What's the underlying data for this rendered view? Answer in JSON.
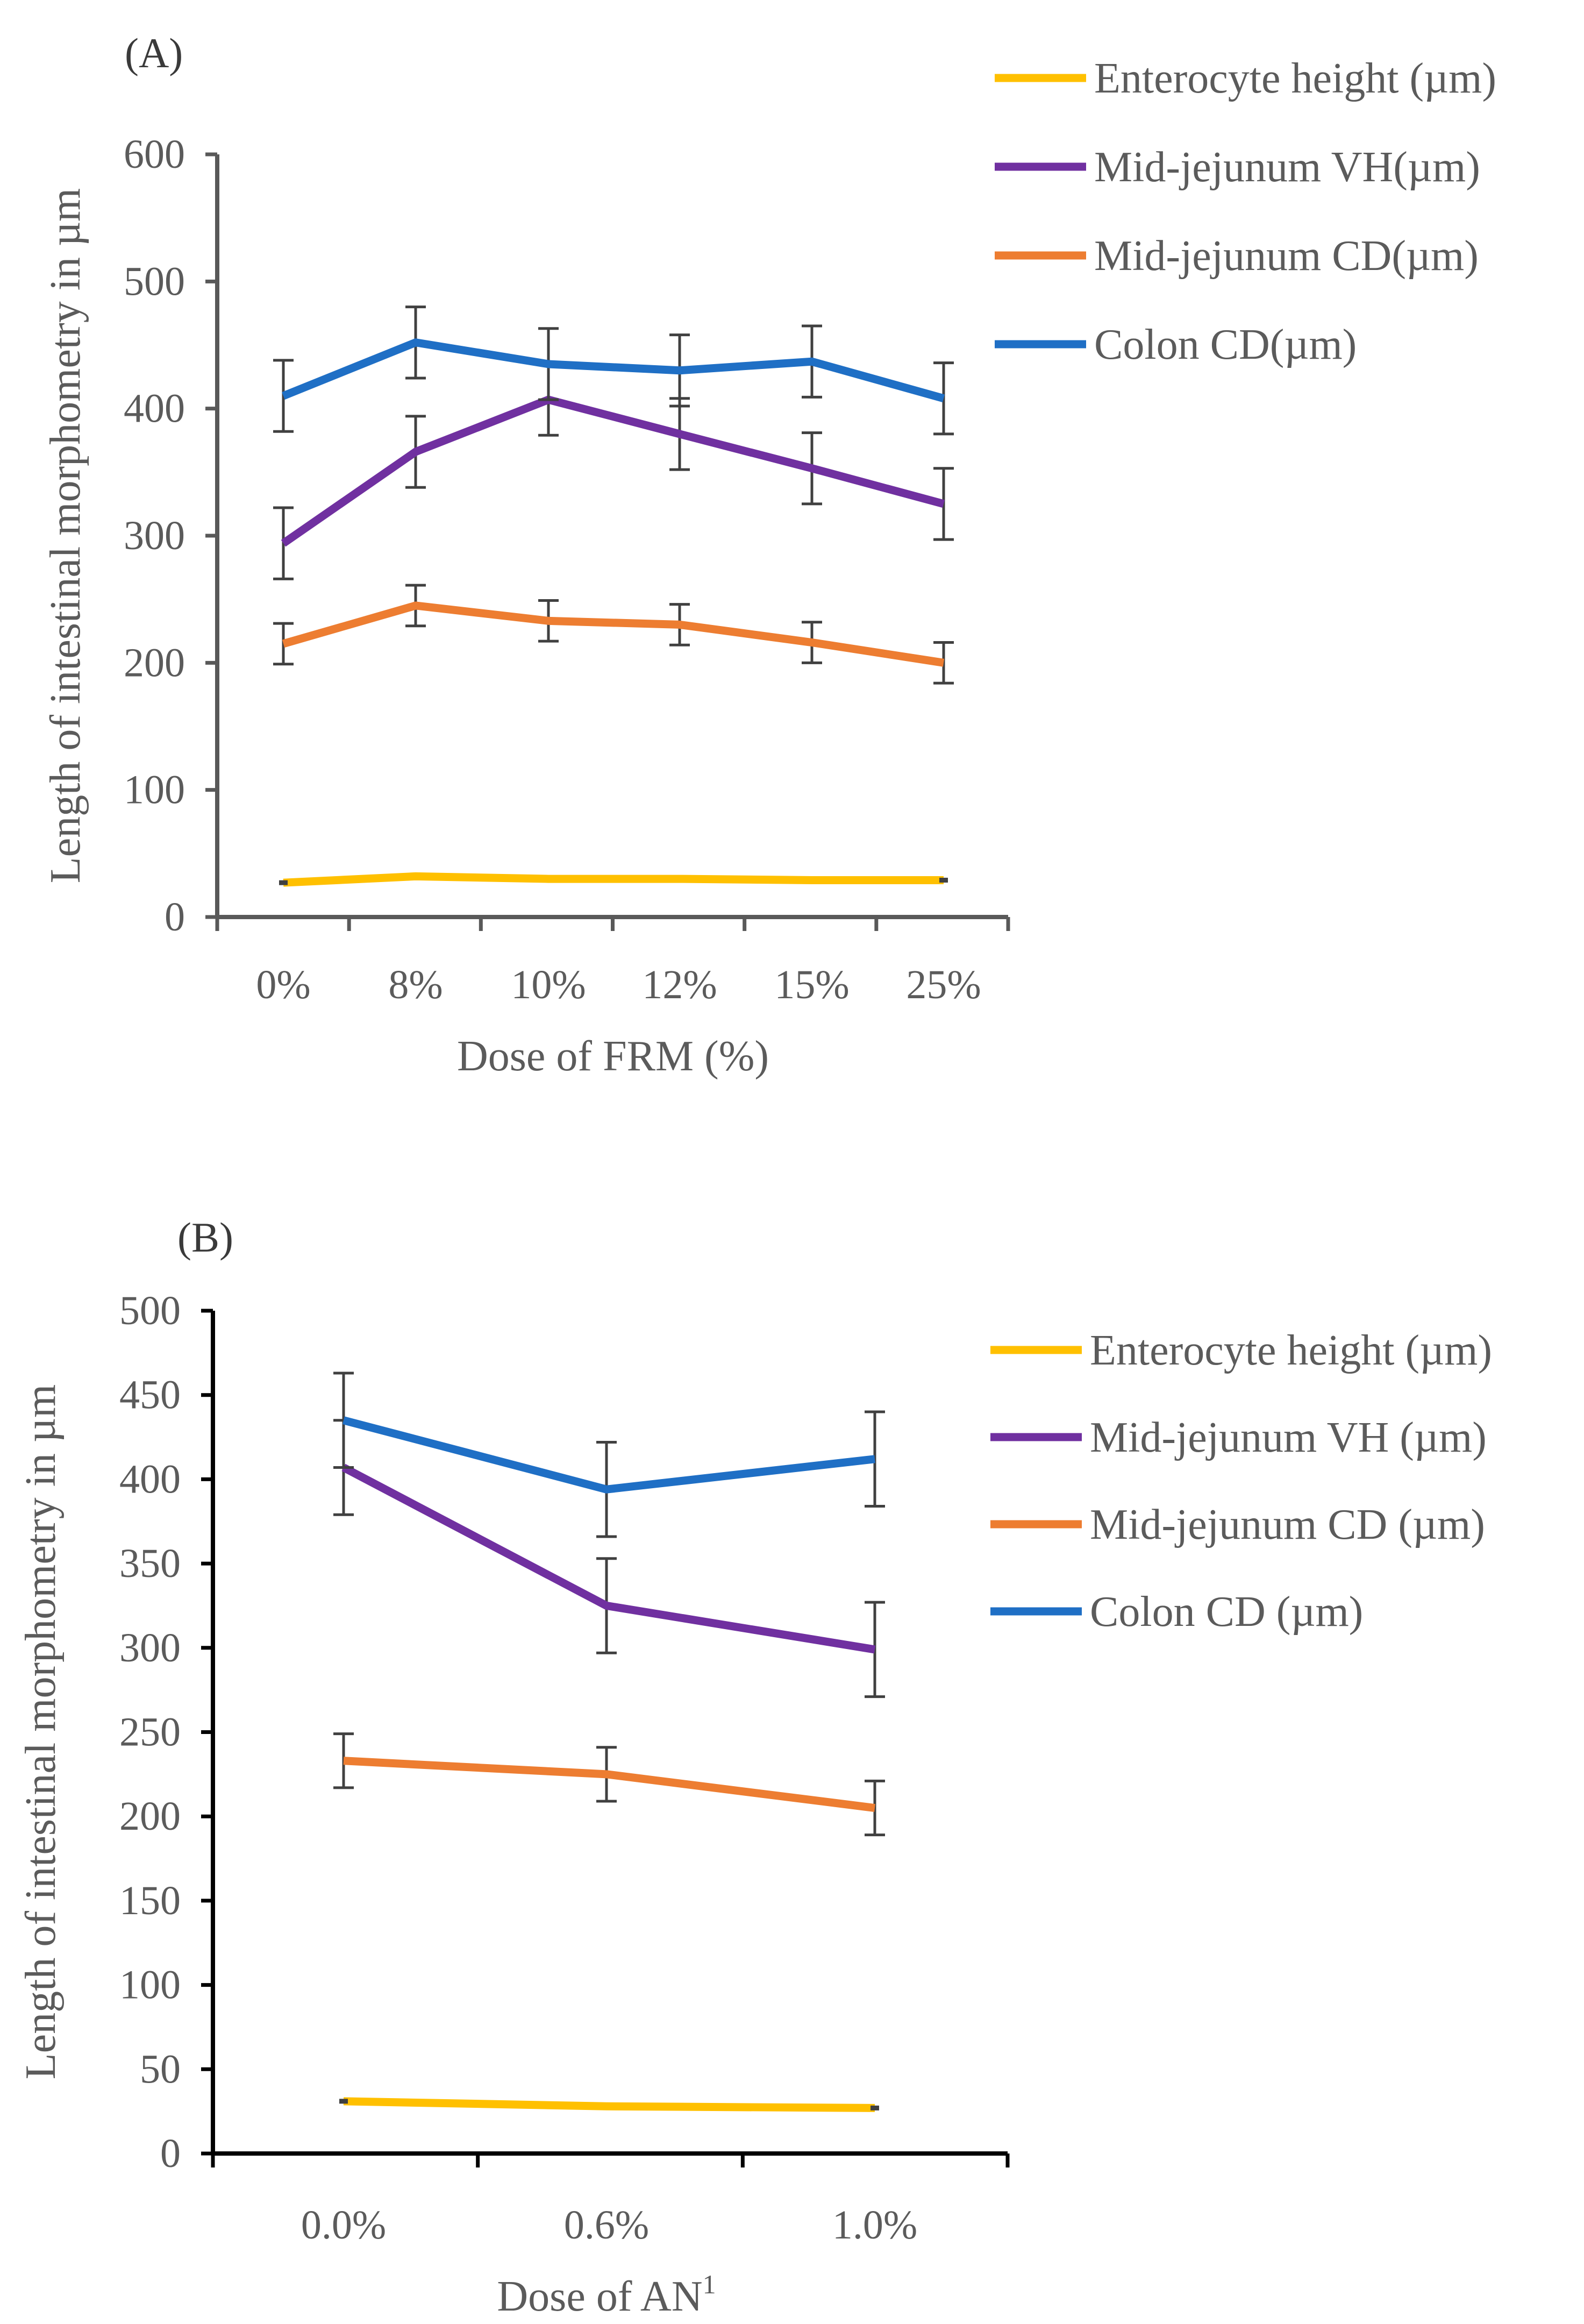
{
  "chart_data": [
    {
      "type": "line",
      "panel_label": "(A)",
      "title": "",
      "xlabel": "Dose of FRM (%)",
      "ylabel": "Length of intestinal morphometry in µm",
      "categories": [
        "0%",
        "8%",
        "10%",
        "12%",
        "15%",
        "25%"
      ],
      "ylim": [
        0,
        600
      ],
      "yticks": [
        0,
        100,
        200,
        300,
        400,
        500,
        600
      ],
      "grid": false,
      "legend_position": "top-right",
      "series": [
        {
          "name": "Enterocyte height (µm)",
          "color": "#FFC000",
          "values": [
            27,
            32,
            30,
            30,
            29,
            29
          ],
          "errors": null
        },
        {
          "name": "Mid-jejunum VH(µm)",
          "color": "#7030A0",
          "values": [
            294,
            366,
            407,
            380,
            353,
            325
          ],
          "errors": [
            28,
            28,
            28,
            28,
            28,
            28
          ]
        },
        {
          "name": "Mid-jejunum CD(µm)",
          "color": "#ED7D31",
          "values": [
            215,
            245,
            233,
            230,
            216,
            200
          ],
          "errors": [
            16,
            16,
            16,
            16,
            16,
            16
          ]
        },
        {
          "name": "Colon CD(µm)",
          "color": "#1F6FC5",
          "values": [
            410,
            452,
            435,
            430,
            437,
            408
          ],
          "errors": [
            28,
            28,
            28,
            28,
            28,
            28
          ]
        }
      ]
    },
    {
      "type": "line",
      "panel_label": "(B)",
      "title": "",
      "xlabel": "Dose of AN",
      "xlabel_superscript": "1",
      "ylabel": "Length of intestinal morphometry in µm",
      "categories": [
        "0.0%",
        "0.6%",
        "1.0%"
      ],
      "ylim": [
        0,
        500
      ],
      "yticks": [
        0,
        50,
        100,
        150,
        200,
        250,
        300,
        350,
        400,
        450,
        500
      ],
      "grid": false,
      "legend_position": "top-right",
      "series": [
        {
          "name": "Enterocyte height (µm)",
          "color": "#FFC000",
          "values": [
            31,
            28,
            27
          ],
          "errors": null
        },
        {
          "name": "Mid-jejunum VH (µm)",
          "color": "#7030A0",
          "values": [
            407,
            325,
            299
          ],
          "errors": [
            28,
            28,
            28
          ]
        },
        {
          "name": "Mid-jejunum CD (µm)",
          "color": "#ED7D31",
          "values": [
            233,
            225,
            205
          ],
          "errors": [
            16,
            16,
            16
          ]
        },
        {
          "name": "Colon CD (µm)",
          "color": "#1F6FC5",
          "values": [
            435,
            394,
            412
          ],
          "errors": [
            28,
            28,
            28
          ]
        }
      ]
    }
  ]
}
